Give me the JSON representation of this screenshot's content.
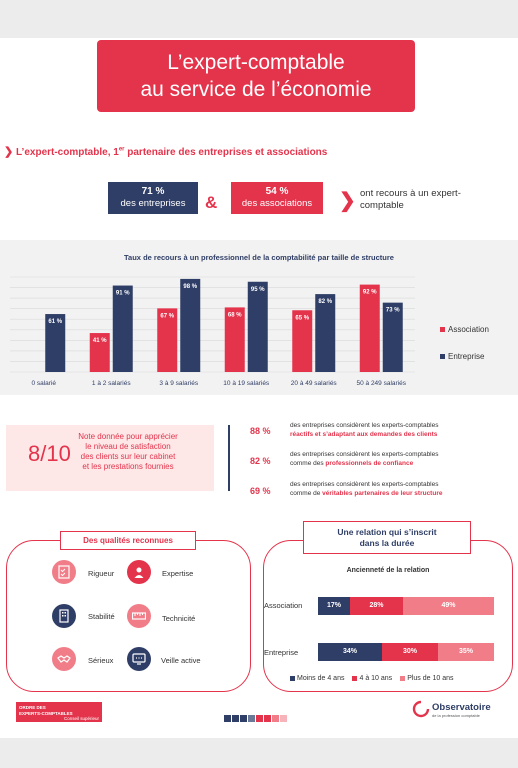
{
  "title": {
    "line1": "L’expert-comptable",
    "line2": "au service de l’économie"
  },
  "section": {
    "text_before": "L’expert-comptable, 1",
    "sup": "er",
    "text_after": " partenaire des entreprises et associations"
  },
  "stats": {
    "entreprises": {
      "pct": "71 %",
      "label": "des entreprises"
    },
    "amp": "&",
    "associations": {
      "pct": "54 %",
      "label": "des associations"
    },
    "recours": "ont recours à un expert-comptable"
  },
  "colors": {
    "red": "#e3344c",
    "navy": "#2f3e66",
    "pink": "#f07d88",
    "light_pink": "#fde7e7"
  },
  "chart_data": {
    "type": "bar",
    "title": "Taux de recours à un professionnel de la comptabilité par taille de structure",
    "categories": [
      "0 salarié",
      "1 à 2 salariés",
      "3 à 9 salariés",
      "10 à 19 salariés",
      "20 à 49 salariés",
      "50 à 249 salariés"
    ],
    "series": [
      {
        "name": "Association",
        "color": "#e3344c",
        "values": [
          null,
          41,
          67,
          68,
          65,
          92
        ],
        "labels": [
          "",
          "41 %",
          "67 %",
          "68 %",
          "65 %",
          "92 %"
        ]
      },
      {
        "name": "Entreprise",
        "color": "#2f3e66",
        "values": [
          61,
          91,
          98,
          95,
          82,
          73
        ],
        "labels": [
          "61 %",
          "91 %",
          "98 %",
          "95 %",
          "82 %",
          "73 %"
        ]
      }
    ],
    "ylim": [
      0,
      100
    ],
    "grid": true,
    "legend": "right"
  },
  "note": {
    "score": "8/10",
    "text": "Note donnée pour apprécier le niveau de satisfaction des clients sur leur cabinet et les prestations fournies"
  },
  "percentages": [
    {
      "pct": "88 %",
      "line1": "des entreprises considèrent les experts-comptables",
      "highlight": "réactifs et s’adaptant aux demandes des clients",
      "prefix": ""
    },
    {
      "pct": "82 %",
      "line1": "des entreprises considèrent les experts-comptables",
      "prefix": "comme des ",
      "highlight": "professionnels de confiance"
    },
    {
      "pct": "69 %",
      "line1": "des entreprises considèrent les experts-comptables",
      "prefix": "comme de ",
      "highlight": "véritables partenaires de leur structure"
    }
  ],
  "qualities": {
    "title": "Des qualités reconnues",
    "items": [
      {
        "label": "Rigueur",
        "icon": "checklist-icon"
      },
      {
        "label": "Expertise",
        "icon": "expert-person-icon"
      },
      {
        "label": "Stabilité",
        "icon": "building-icon"
      },
      {
        "label": "Technicité",
        "icon": "ruler-icon"
      },
      {
        "label": "Sérieux",
        "icon": "handshake-icon"
      },
      {
        "label": "Veille active",
        "icon": "monitor-icon"
      }
    ]
  },
  "relation": {
    "title_line1": "Une relation qui s’inscrit",
    "title_line2": "dans la durée",
    "subtitle": "Ancienneté de la relation",
    "rows": [
      {
        "label": "Association",
        "segments": [
          {
            "value": 17,
            "label": "17%"
          },
          {
            "value": 28,
            "label": "28%"
          },
          {
            "value": 49,
            "label": "49%"
          }
        ]
      },
      {
        "label": "Entreprise",
        "segments": [
          {
            "value": 34,
            "label": "34%"
          },
          {
            "value": 30,
            "label": "30%"
          },
          {
            "value": 35,
            "label": "35%"
          }
        ]
      }
    ],
    "legend": [
      "Moins de 4 ans",
      "4 à 10 ans",
      "Plus de 10 ans"
    ]
  },
  "footer": {
    "left_logo_line1": "ORDRE DES",
    "left_logo_line2": "EXPERTS-COMPTABLES",
    "left_logo_sub": "Conseil supérieur",
    "right_logo": "Observatoire",
    "right_tag": "de la profession comptable"
  }
}
